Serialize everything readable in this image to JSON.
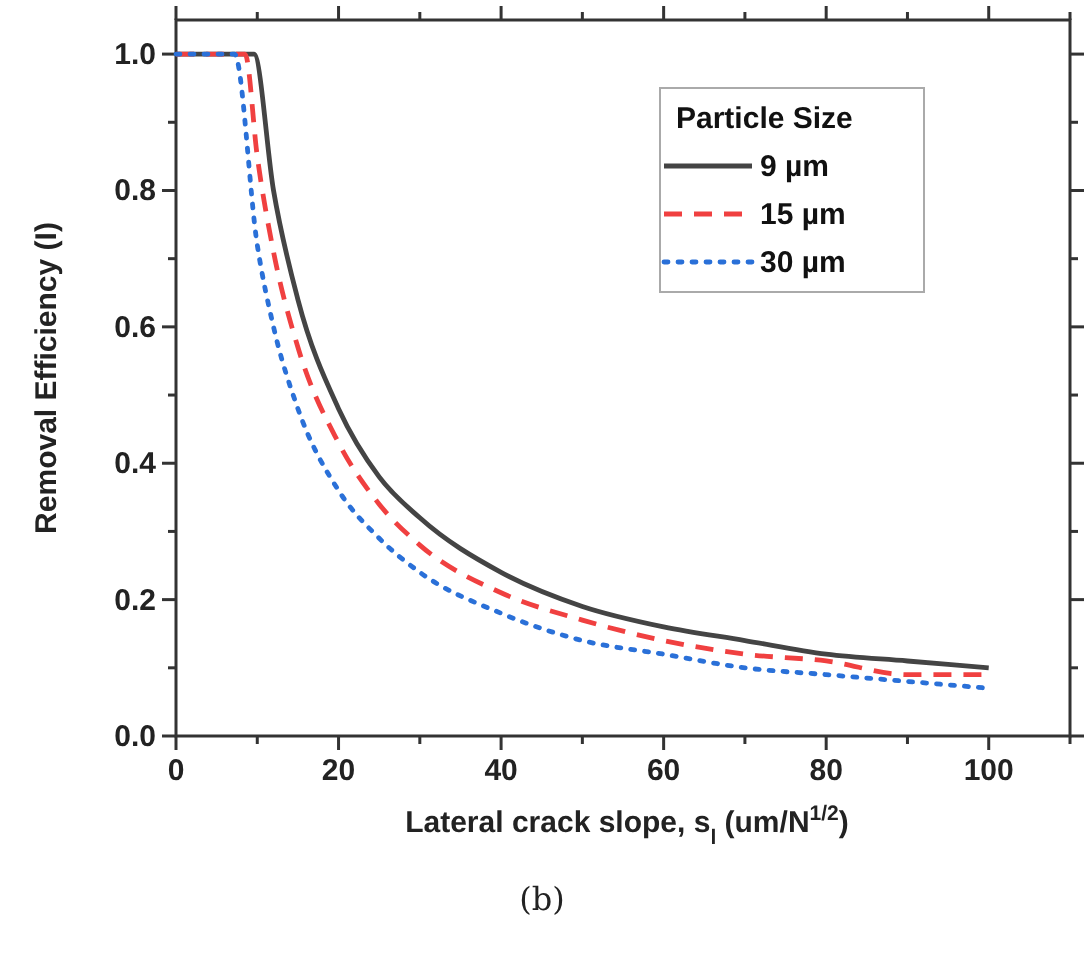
{
  "chart_data": {
    "type": "line",
    "xlabel": "Lateral crack slope, s$_{l}$ (um/N$^{1/2}$)",
    "ylabel": "Removal Efficiency (I)",
    "legend_title": "Particle Size",
    "legend": "top right",
    "grid": false,
    "xlim": [
      0,
      110
    ],
    "ylim": [
      0,
      1.05
    ],
    "xticks": [
      0,
      {
        "value": 10,
        "label": null
      },
      20,
      {
        "value": 30,
        "label": null
      },
      40,
      {
        "value": 50,
        "label": null
      },
      60,
      {
        "value": 70,
        "label": null
      },
      80,
      {
        "value": 90,
        "label": null
      },
      100,
      {
        "value": 110,
        "label": null
      }
    ],
    "yticks": [
      {
        "value": 0,
        "label": "0.0"
      },
      {
        "value": 0.1,
        "label": null
      },
      {
        "value": 0.2,
        "label": "0.2"
      },
      {
        "value": 0.3,
        "label": null
      },
      {
        "value": 0.4,
        "label": "0.4"
      },
      {
        "value": 0.5,
        "label": null
      },
      {
        "value": 0.6,
        "label": "0.6"
      },
      {
        "value": 0.7,
        "label": null
      },
      {
        "value": 0.8,
        "label": "0.8"
      },
      {
        "value": 0.9,
        "label": null
      },
      {
        "value": 1,
        "label": "1.0"
      }
    ],
    "series": [
      {
        "name": "9 µm",
        "color": "#444444",
        "line_style": "solid",
        "x": [
          0,
          9.6,
          12,
          15,
          20,
          25,
          30,
          40,
          50,
          60,
          70,
          80,
          90,
          100
        ],
        "values": [
          1,
          1,
          0.8,
          0.64,
          0.48,
          0.38,
          0.32,
          0.24,
          0.19,
          0.16,
          0.14,
          0.12,
          0.11,
          0.1
        ]
      },
      {
        "name": "15 µm",
        "color": "#f04040",
        "line_style": "dashed",
        "x": [
          0,
          8.5,
          10,
          12,
          15,
          20,
          25,
          30,
          40,
          50,
          60,
          70,
          80,
          90,
          100
        ],
        "values": [
          1,
          1,
          0.85,
          0.71,
          0.57,
          0.43,
          0.34,
          0.28,
          0.21,
          0.17,
          0.14,
          0.12,
          0.11,
          0.09,
          0.09
        ]
      },
      {
        "name": "30 µm",
        "color": "#2a70d8",
        "line_style": "dotted",
        "x": [
          0,
          7.2,
          10,
          12,
          15,
          20,
          25,
          30,
          40,
          50,
          60,
          70,
          80,
          90,
          100
        ],
        "values": [
          1,
          1,
          0.72,
          0.6,
          0.48,
          0.36,
          0.29,
          0.24,
          0.18,
          0.14,
          0.12,
          0.1,
          0.09,
          0.08,
          0.07
        ]
      }
    ],
    "annotations": [
      "(b)"
    ]
  }
}
